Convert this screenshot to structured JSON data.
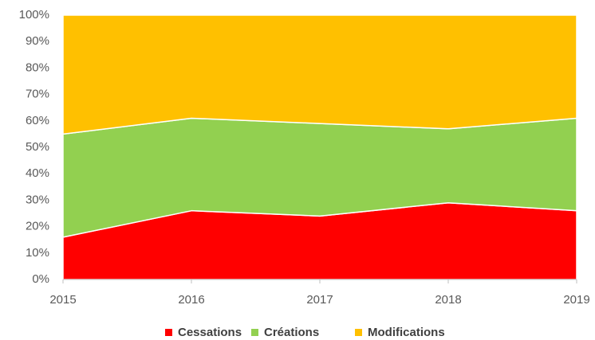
{
  "chart_data": {
    "type": "stacked_area_100",
    "categories": [
      "2015",
      "2016",
      "2017",
      "2018",
      "2019"
    ],
    "series": [
      {
        "name": "Cessations",
        "color": "#ff0000",
        "values": [
          16,
          26,
          24,
          29,
          26
        ]
      },
      {
        "name": "Créations",
        "color": "#92d050",
        "values": [
          39,
          35,
          35,
          28,
          35
        ]
      },
      {
        "name": "Modifications",
        "color": "#ffc000",
        "values": [
          45,
          39,
          41,
          43,
          39
        ]
      }
    ],
    "ylim": [
      0,
      100
    ],
    "yticks": [
      {
        "value": 0,
        "label": "0%"
      },
      {
        "value": 10,
        "label": "10%"
      },
      {
        "value": 20,
        "label": "20%"
      },
      {
        "value": 30,
        "label": "30%"
      },
      {
        "value": 40,
        "label": "40%"
      },
      {
        "value": 50,
        "label": "50%"
      },
      {
        "value": 60,
        "label": "60%"
      },
      {
        "value": 70,
        "label": "70%"
      },
      {
        "value": 80,
        "label": "80%"
      },
      {
        "value": 90,
        "label": "90%"
      },
      {
        "value": 100,
        "label": "100%"
      }
    ],
    "grid": false,
    "legend": "bottom"
  }
}
